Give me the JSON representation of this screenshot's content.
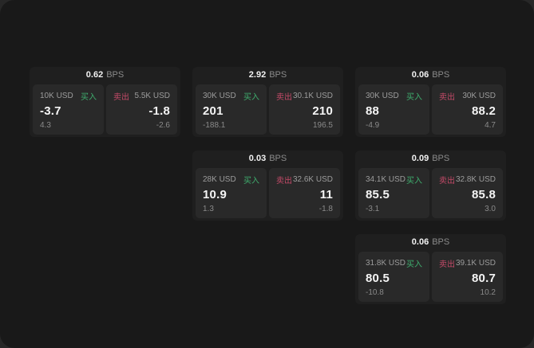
{
  "labels": {
    "buy": "买入",
    "sell": "卖出",
    "bps": "BPS"
  },
  "colors": {
    "buy_green": "#3fae6e",
    "sell_red": "#c44a68",
    "page_bg": "#191919",
    "card_bg": "#1f1f1f",
    "panel_bg": "#292929"
  },
  "cards": [
    {
      "bps": "0.62",
      "buy": {
        "amount": "10K USD",
        "value": "-3.7",
        "sub": "4.3"
      },
      "sell": {
        "amount": "5.5K USD",
        "value": "-1.8",
        "sub": "-2.6"
      }
    },
    {
      "bps": "2.92",
      "buy": {
        "amount": "30K USD",
        "value": "201",
        "sub": "-188.1"
      },
      "sell": {
        "amount": "30.1K USD",
        "value": "210",
        "sub": "196.5"
      }
    },
    {
      "bps": "0.06",
      "buy": {
        "amount": "30K USD",
        "value": "88",
        "sub": "-4.9"
      },
      "sell": {
        "amount": "30K USD",
        "value": "88.2",
        "sub": "4.7"
      }
    },
    {
      "bps": "0.03",
      "buy": {
        "amount": "28K USD",
        "value": "10.9",
        "sub": "1.3"
      },
      "sell": {
        "amount": "32.6K USD",
        "value": "11",
        "sub": "-1.8"
      }
    },
    {
      "bps": "0.09",
      "buy": {
        "amount": "34.1K USD",
        "value": "85.5",
        "sub": "-3.1"
      },
      "sell": {
        "amount": "32.8K USD",
        "value": "85.8",
        "sub": "3.0"
      }
    },
    {
      "bps": "0.06",
      "buy": {
        "amount": "31.8K USD",
        "value": "80.5",
        "sub": "-10.8"
      },
      "sell": {
        "amount": "39.1K USD",
        "value": "80.7",
        "sub": "10.2"
      }
    }
  ]
}
